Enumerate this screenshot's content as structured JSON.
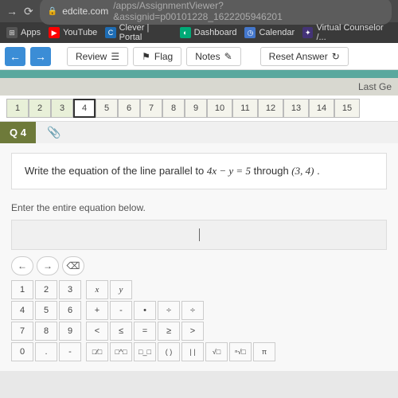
{
  "browser": {
    "url_domain": "edcite.com",
    "url_path": "/apps/AssignmentViewer?&assignid=p00101228_1622205946201",
    "bookmarks": {
      "apps": "Apps",
      "youtube": "YouTube",
      "clever": "Clever | Portal",
      "dashboard": "Dashboard",
      "calendar": "Calendar",
      "counselor": "Virtual Counselor /..."
    }
  },
  "toolbar": {
    "review": "Review",
    "flag": "Flag",
    "notes": "Notes",
    "reset": "Reset Answer"
  },
  "last_label": "Last Ge",
  "qnav": [
    "1",
    "2",
    "3",
    "4",
    "5",
    "6",
    "7",
    "8",
    "9",
    "10",
    "11",
    "12",
    "13",
    "14",
    "15"
  ],
  "current_q": 4,
  "q_label": "Q 4",
  "question": {
    "prefix": "Write the equation of the line parallel to ",
    "eq": "4x − y = 5",
    "mid": " through ",
    "point": "(3, 4)",
    "suffix": "."
  },
  "instruction": "Enter the entire equation below.",
  "keys": {
    "nums": [
      "1",
      "2",
      "3",
      "4",
      "5",
      "6",
      "7",
      "8",
      "9",
      "0",
      ".",
      "-"
    ],
    "vars": [
      "x",
      "y"
    ],
    "ops1": [
      "+",
      "-",
      "•",
      "÷",
      "÷"
    ],
    "ops2": [
      "<",
      "≤",
      "=",
      "≥",
      ">"
    ],
    "ops3": [
      "□⁄□",
      "□^□",
      "□_□",
      "( )",
      "| |",
      "√□",
      "ⁿ√□",
      "π"
    ]
  },
  "colors": {
    "teal": "#5aa89e",
    "olive": "#6e7a3a",
    "blue": "#3b8dd6"
  }
}
